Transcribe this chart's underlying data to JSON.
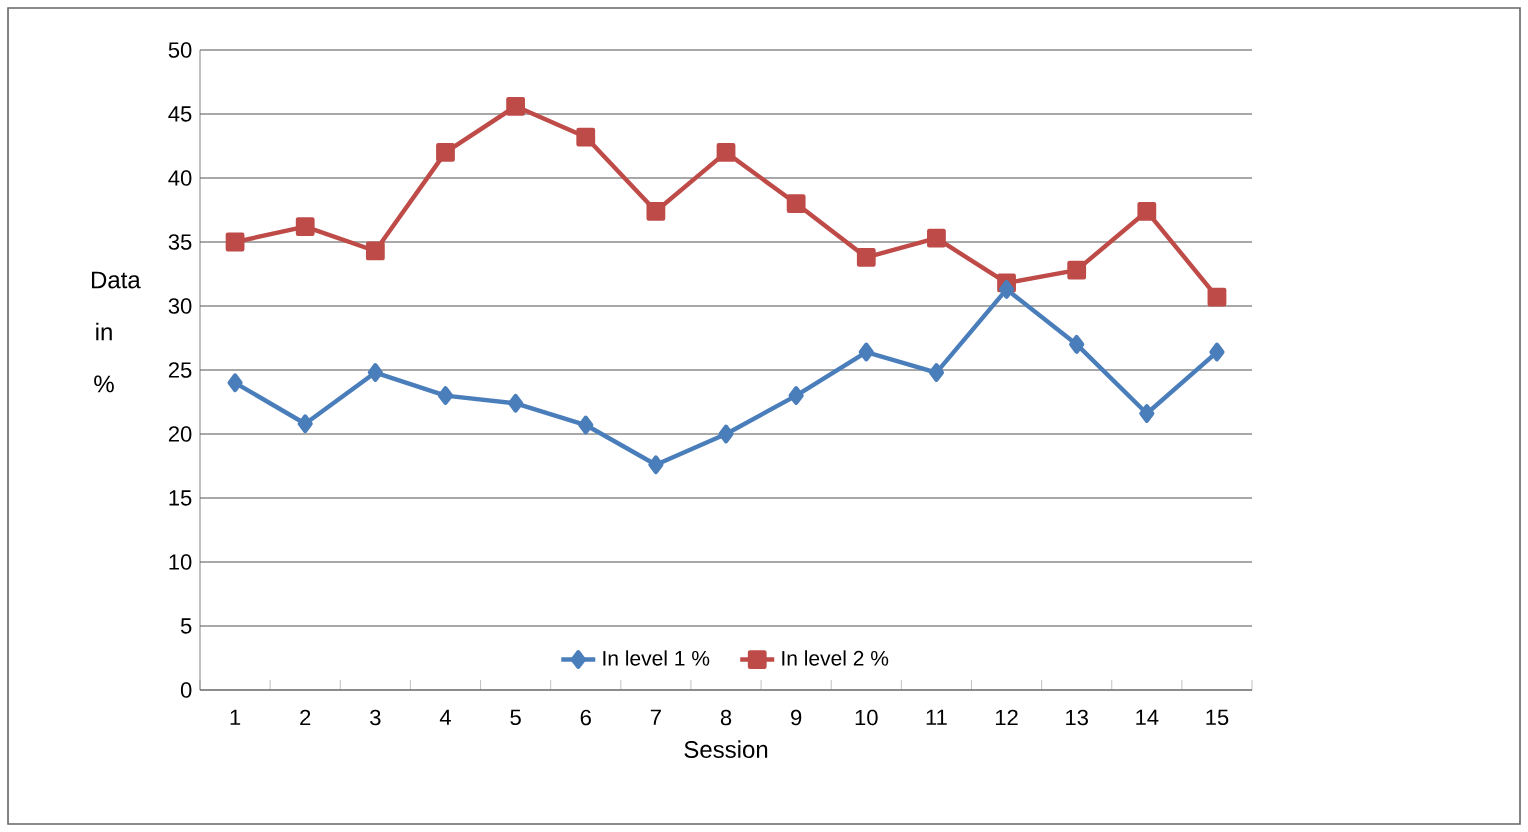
{
  "chart_data": {
    "type": "line",
    "xlabel": "Session",
    "ylabel": "Data in %",
    "categories": [
      "1",
      "2",
      "3",
      "4",
      "5",
      "6",
      "7",
      "8",
      "9",
      "10",
      "11",
      "12",
      "13",
      "14",
      "15"
    ],
    "series": [
      {
        "name": "In level 1 %",
        "color": "#4a7ebb",
        "marker": "diamond",
        "values": [
          24,
          20.8,
          24.8,
          23,
          22.4,
          20.7,
          17.6,
          20,
          23,
          26.4,
          24.8,
          31.3,
          27,
          21.6,
          26.4
        ]
      },
      {
        "name": "In level 2 %",
        "color": "#be4b48",
        "marker": "square",
        "values": [
          35,
          36.2,
          34.3,
          42,
          45.6,
          43.2,
          37.4,
          42,
          38,
          33.8,
          35.3,
          31.8,
          32.8,
          37.4,
          30.7
        ]
      }
    ],
    "ylim": [
      0,
      50
    ],
    "yticks": [
      0,
      5,
      10,
      15,
      20,
      25,
      30,
      35,
      40,
      45,
      50
    ],
    "grid": "y",
    "legend": "bottom",
    "line_style": "solid"
  }
}
